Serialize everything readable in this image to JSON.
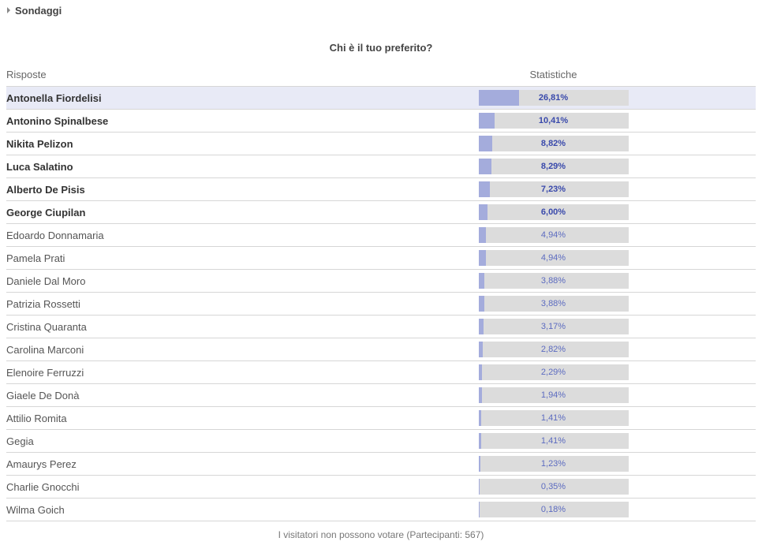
{
  "widget": {
    "title": "Sondaggi",
    "caret_icon": "caret-right-icon"
  },
  "poll": {
    "question": "Chi è il tuo preferito?",
    "columns": {
      "answers": "Risposte",
      "stats": "Statistiche"
    },
    "highlight_color": "#e8eaf6",
    "bar_fill_color": "#a4acdc",
    "bar_track_color": "#dcdcdc",
    "answers": [
      {
        "name": "Antonella Fiordelisi",
        "pct_label": "26,81%",
        "value": 26.81
      },
      {
        "name": "Antonino Spinalbese",
        "pct_label": "10,41%",
        "value": 10.41
      },
      {
        "name": "Nikita Pelizon",
        "pct_label": "8,82%",
        "value": 8.82
      },
      {
        "name": "Luca Salatino",
        "pct_label": "8,29%",
        "value": 8.29
      },
      {
        "name": "Alberto De Pisis",
        "pct_label": "7,23%",
        "value": 7.23
      },
      {
        "name": "George Ciupilan",
        "pct_label": "6,00%",
        "value": 6.0
      },
      {
        "name": "Edoardo Donnamaria",
        "pct_label": "4,94%",
        "value": 4.94
      },
      {
        "name": "Pamela Prati",
        "pct_label": "4,94%",
        "value": 4.94
      },
      {
        "name": "Daniele Dal Moro",
        "pct_label": "3,88%",
        "value": 3.88
      },
      {
        "name": "Patrizia Rossetti",
        "pct_label": "3,88%",
        "value": 3.88
      },
      {
        "name": "Cristina Quaranta",
        "pct_label": "3,17%",
        "value": 3.17
      },
      {
        "name": "Carolina Marconi",
        "pct_label": "2,82%",
        "value": 2.82
      },
      {
        "name": "Elenoire Ferruzzi",
        "pct_label": "2,29%",
        "value": 2.29
      },
      {
        "name": "Giaele De Donà",
        "pct_label": "1,94%",
        "value": 1.94
      },
      {
        "name": "Attilio Romita",
        "pct_label": "1,41%",
        "value": 1.41
      },
      {
        "name": "Gegia",
        "pct_label": "1,41%",
        "value": 1.41
      },
      {
        "name": "Amaurys Perez",
        "pct_label": "1,23%",
        "value": 1.23
      },
      {
        "name": "Charlie Gnocchi",
        "pct_label": "0,35%",
        "value": 0.35
      },
      {
        "name": "Wilma Goich",
        "pct_label": "0,18%",
        "value": 0.18
      }
    ],
    "footer": "I visitatori non possono votare (Partecipanti: 567)"
  }
}
